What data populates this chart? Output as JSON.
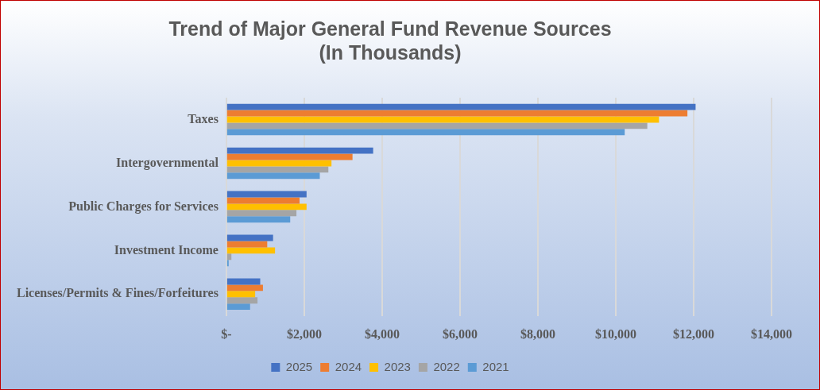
{
  "chart_data": {
    "type": "bar",
    "orientation": "horizontal",
    "title": "Trend of Major General Fund Revenue Sources\n(In Thousands)",
    "categories": [
      "Taxes",
      "Intergovernmental",
      "Public Charges for Services",
      "Investment Income",
      "Licenses/Permits & Fines/Forfeitures"
    ],
    "series": [
      {
        "name": "2025",
        "color": "#4472c4",
        "values": [
          12050,
          3770,
          2060,
          1200,
          870
        ]
      },
      {
        "name": "2024",
        "color": "#ed7d31",
        "values": [
          11840,
          3240,
          1880,
          1050,
          940
        ]
      },
      {
        "name": "2023",
        "color": "#ffc000",
        "values": [
          11110,
          2700,
          2060,
          1250,
          740
        ]
      },
      {
        "name": "2022",
        "color": "#a5a5a5",
        "values": [
          10810,
          2620,
          1800,
          130,
          800
        ]
      },
      {
        "name": "2021",
        "color": "#5b9bd5",
        "values": [
          10230,
          2400,
          1640,
          60,
          610
        ]
      }
    ],
    "xlim": [
      0,
      14000
    ],
    "xticks": [
      {
        "value": 0,
        "label": "$-"
      },
      {
        "value": 2000,
        "label": "$2,000"
      },
      {
        "value": 4000,
        "label": "$4,000"
      },
      {
        "value": 6000,
        "label": "$6,000"
      },
      {
        "value": 8000,
        "label": "$8,000"
      },
      {
        "value": 10000,
        "label": "$10,000"
      },
      {
        "value": 12000,
        "label": "$12,000"
      },
      {
        "value": 14000,
        "label": "$14,000"
      }
    ],
    "grid": "x",
    "legend": "bottom"
  }
}
